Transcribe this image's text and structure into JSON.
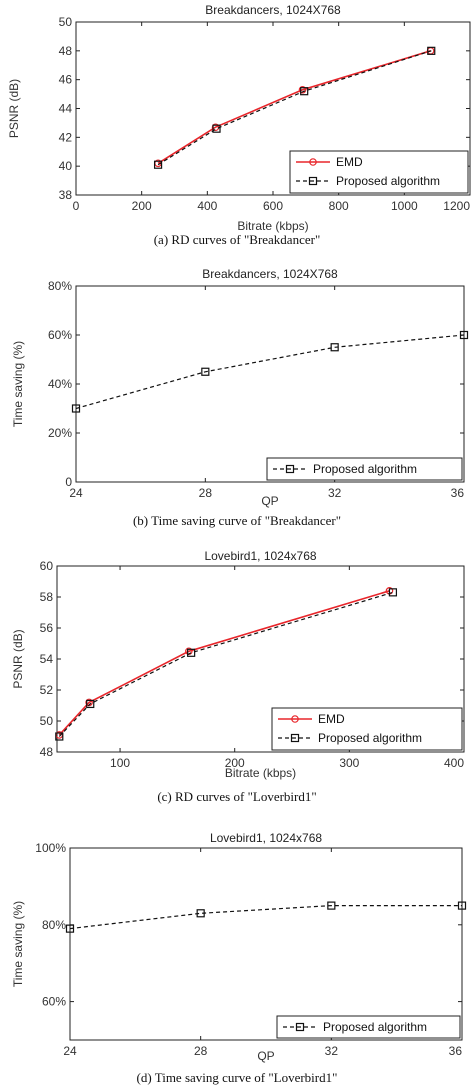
{
  "captions": [
    "(a)     RD curves of \"Breakdancer\"",
    "(b) Time saving curve of \"Breakdancer\"",
    "(c) RD curves of \"Loverbird1\"",
    "(d) Time saving curve of \"Loverbird1\""
  ],
  "chart_data": [
    {
      "type": "line",
      "title": "Breakdancers, 1024X768",
      "xlabel": "Bitrate (kbps)",
      "ylabel": "PSNR (dB)",
      "xlim": [
        0,
        1200
      ],
      "ylim": [
        38,
        50
      ],
      "xticks": [
        0,
        200,
        400,
        600,
        800,
        1000,
        1200
      ],
      "xtick_labels": [
        "0",
        "200",
        "400",
        "600",
        "800",
        "1000",
        "1200"
      ],
      "yticks": [
        38,
        40,
        42,
        44,
        46,
        48,
        50
      ],
      "ytick_labels": [
        "38",
        "40",
        "42",
        "44",
        "46",
        "48",
        "50"
      ],
      "legend_position": "bottom-right",
      "grid": false,
      "series": [
        {
          "name": "EMD",
          "color": "#e8262b",
          "style": "solid",
          "marker": "circle",
          "x": [
            250,
            425,
            690,
            1080
          ],
          "y": [
            40.2,
            42.7,
            45.3,
            48.0
          ]
        },
        {
          "name": "Proposed algorithm",
          "color": "#111111",
          "style": "dashed",
          "marker": "square",
          "x": [
            250,
            428,
            695,
            1082
          ],
          "y": [
            40.1,
            42.6,
            45.2,
            48.0
          ]
        }
      ]
    },
    {
      "type": "line",
      "title": "Breakdancers, 1024X768",
      "xlabel": "QP",
      "ylabel": "Time saving (%)",
      "xlim": [
        24,
        36
      ],
      "ylim": [
        0,
        80
      ],
      "xticks": [
        24,
        28,
        32,
        36
      ],
      "xtick_labels": [
        "24",
        "28",
        "32",
        "36"
      ],
      "yticks": [
        0,
        20,
        40,
        60,
        80
      ],
      "ytick_labels": [
        "0",
        "20%",
        "40%",
        "60%",
        "80%"
      ],
      "legend_position": "bottom-right",
      "grid": false,
      "series": [
        {
          "name": "Proposed algorithm",
          "color": "#111111",
          "style": "dashed",
          "marker": "square",
          "x": [
            24,
            28,
            32,
            36
          ],
          "y": [
            30,
            45,
            55,
            60
          ]
        }
      ]
    },
    {
      "type": "line",
      "title": "Lovebird1, 1024x768",
      "xlabel": "Bitrate (kbps)",
      "ylabel": "PSNR (dB)",
      "xlim": [
        45,
        400
      ],
      "ylim": [
        48,
        60
      ],
      "xticks": [
        100,
        200,
        300,
        400
      ],
      "xtick_labels": [
        "100",
        "200",
        "300",
        "400"
      ],
      "yticks": [
        48,
        50,
        52,
        54,
        56,
        58,
        60
      ],
      "ytick_labels": [
        "48",
        "50",
        "52",
        "54",
        "56",
        "58",
        "60"
      ],
      "legend_position": "bottom-right",
      "grid": false,
      "series": [
        {
          "name": "EMD",
          "color": "#e8262b",
          "style": "solid",
          "marker": "circle",
          "x": [
            47,
            73,
            160,
            335
          ],
          "y": [
            49.1,
            51.2,
            54.5,
            58.4
          ]
        },
        {
          "name": "Proposed algorithm",
          "color": "#111111",
          "style": "dashed",
          "marker": "square",
          "x": [
            47,
            74,
            162,
            338
          ],
          "y": [
            49.0,
            51.1,
            54.4,
            58.3
          ]
        }
      ]
    },
    {
      "type": "line",
      "title": "Lovebird1, 1024x768",
      "xlabel": "QP",
      "ylabel": "Time saving (%)",
      "xlim": [
        24,
        36
      ],
      "ylim": [
        50,
        100
      ],
      "xticks": [
        24,
        28,
        32,
        36
      ],
      "xtick_labels": [
        "24",
        "28",
        "32",
        "36"
      ],
      "yticks": [
        60,
        80,
        100
      ],
      "ytick_labels": [
        "60%",
        "80%",
        "100%"
      ],
      "legend_position": "bottom-right",
      "grid": false,
      "series": [
        {
          "name": "Proposed algorithm",
          "color": "#111111",
          "style": "dashed",
          "marker": "square",
          "x": [
            24,
            28,
            32,
            36
          ],
          "y": [
            79,
            83,
            85,
            85
          ]
        }
      ]
    }
  ]
}
